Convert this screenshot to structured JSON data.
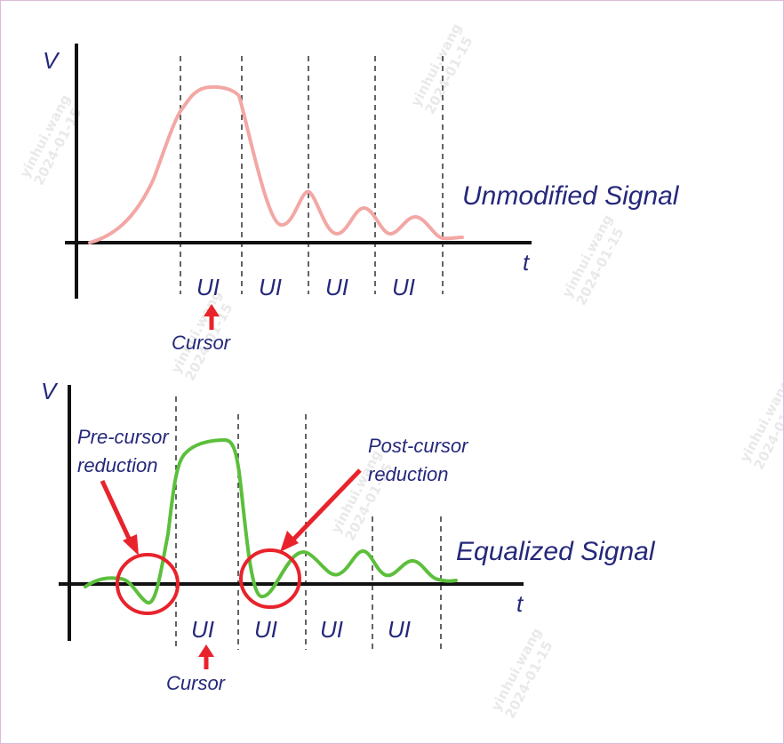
{
  "colors": {
    "axis": "#111111",
    "text_navy": "#25287a",
    "unmodified_curve": "#f3a7a4",
    "equalized_curve": "#5cbf3c",
    "arrow_red": "#e8232b",
    "circle_red": "#e8232b"
  },
  "top": {
    "y_label": "V",
    "x_label": "t",
    "signal_label": "Unmodified Signal",
    "ui_labels": [
      "UI",
      "UI",
      "UI",
      "UI"
    ],
    "cursor_label": "Cursor"
  },
  "bottom": {
    "y_label": "V",
    "x_label": "t",
    "signal_label": "Equalized Signal",
    "ui_labels": [
      "UI",
      "UI",
      "UI",
      "UI"
    ],
    "cursor_label": "Cursor",
    "pre_cursor_line1": "Pre-cursor",
    "pre_cursor_line2": "reduction",
    "post_cursor_line1": "Post-cursor",
    "post_cursor_line2": "reduction"
  },
  "watermarks": [
    {
      "name": "yinhui.wang",
      "date": "2024-01-15"
    }
  ]
}
